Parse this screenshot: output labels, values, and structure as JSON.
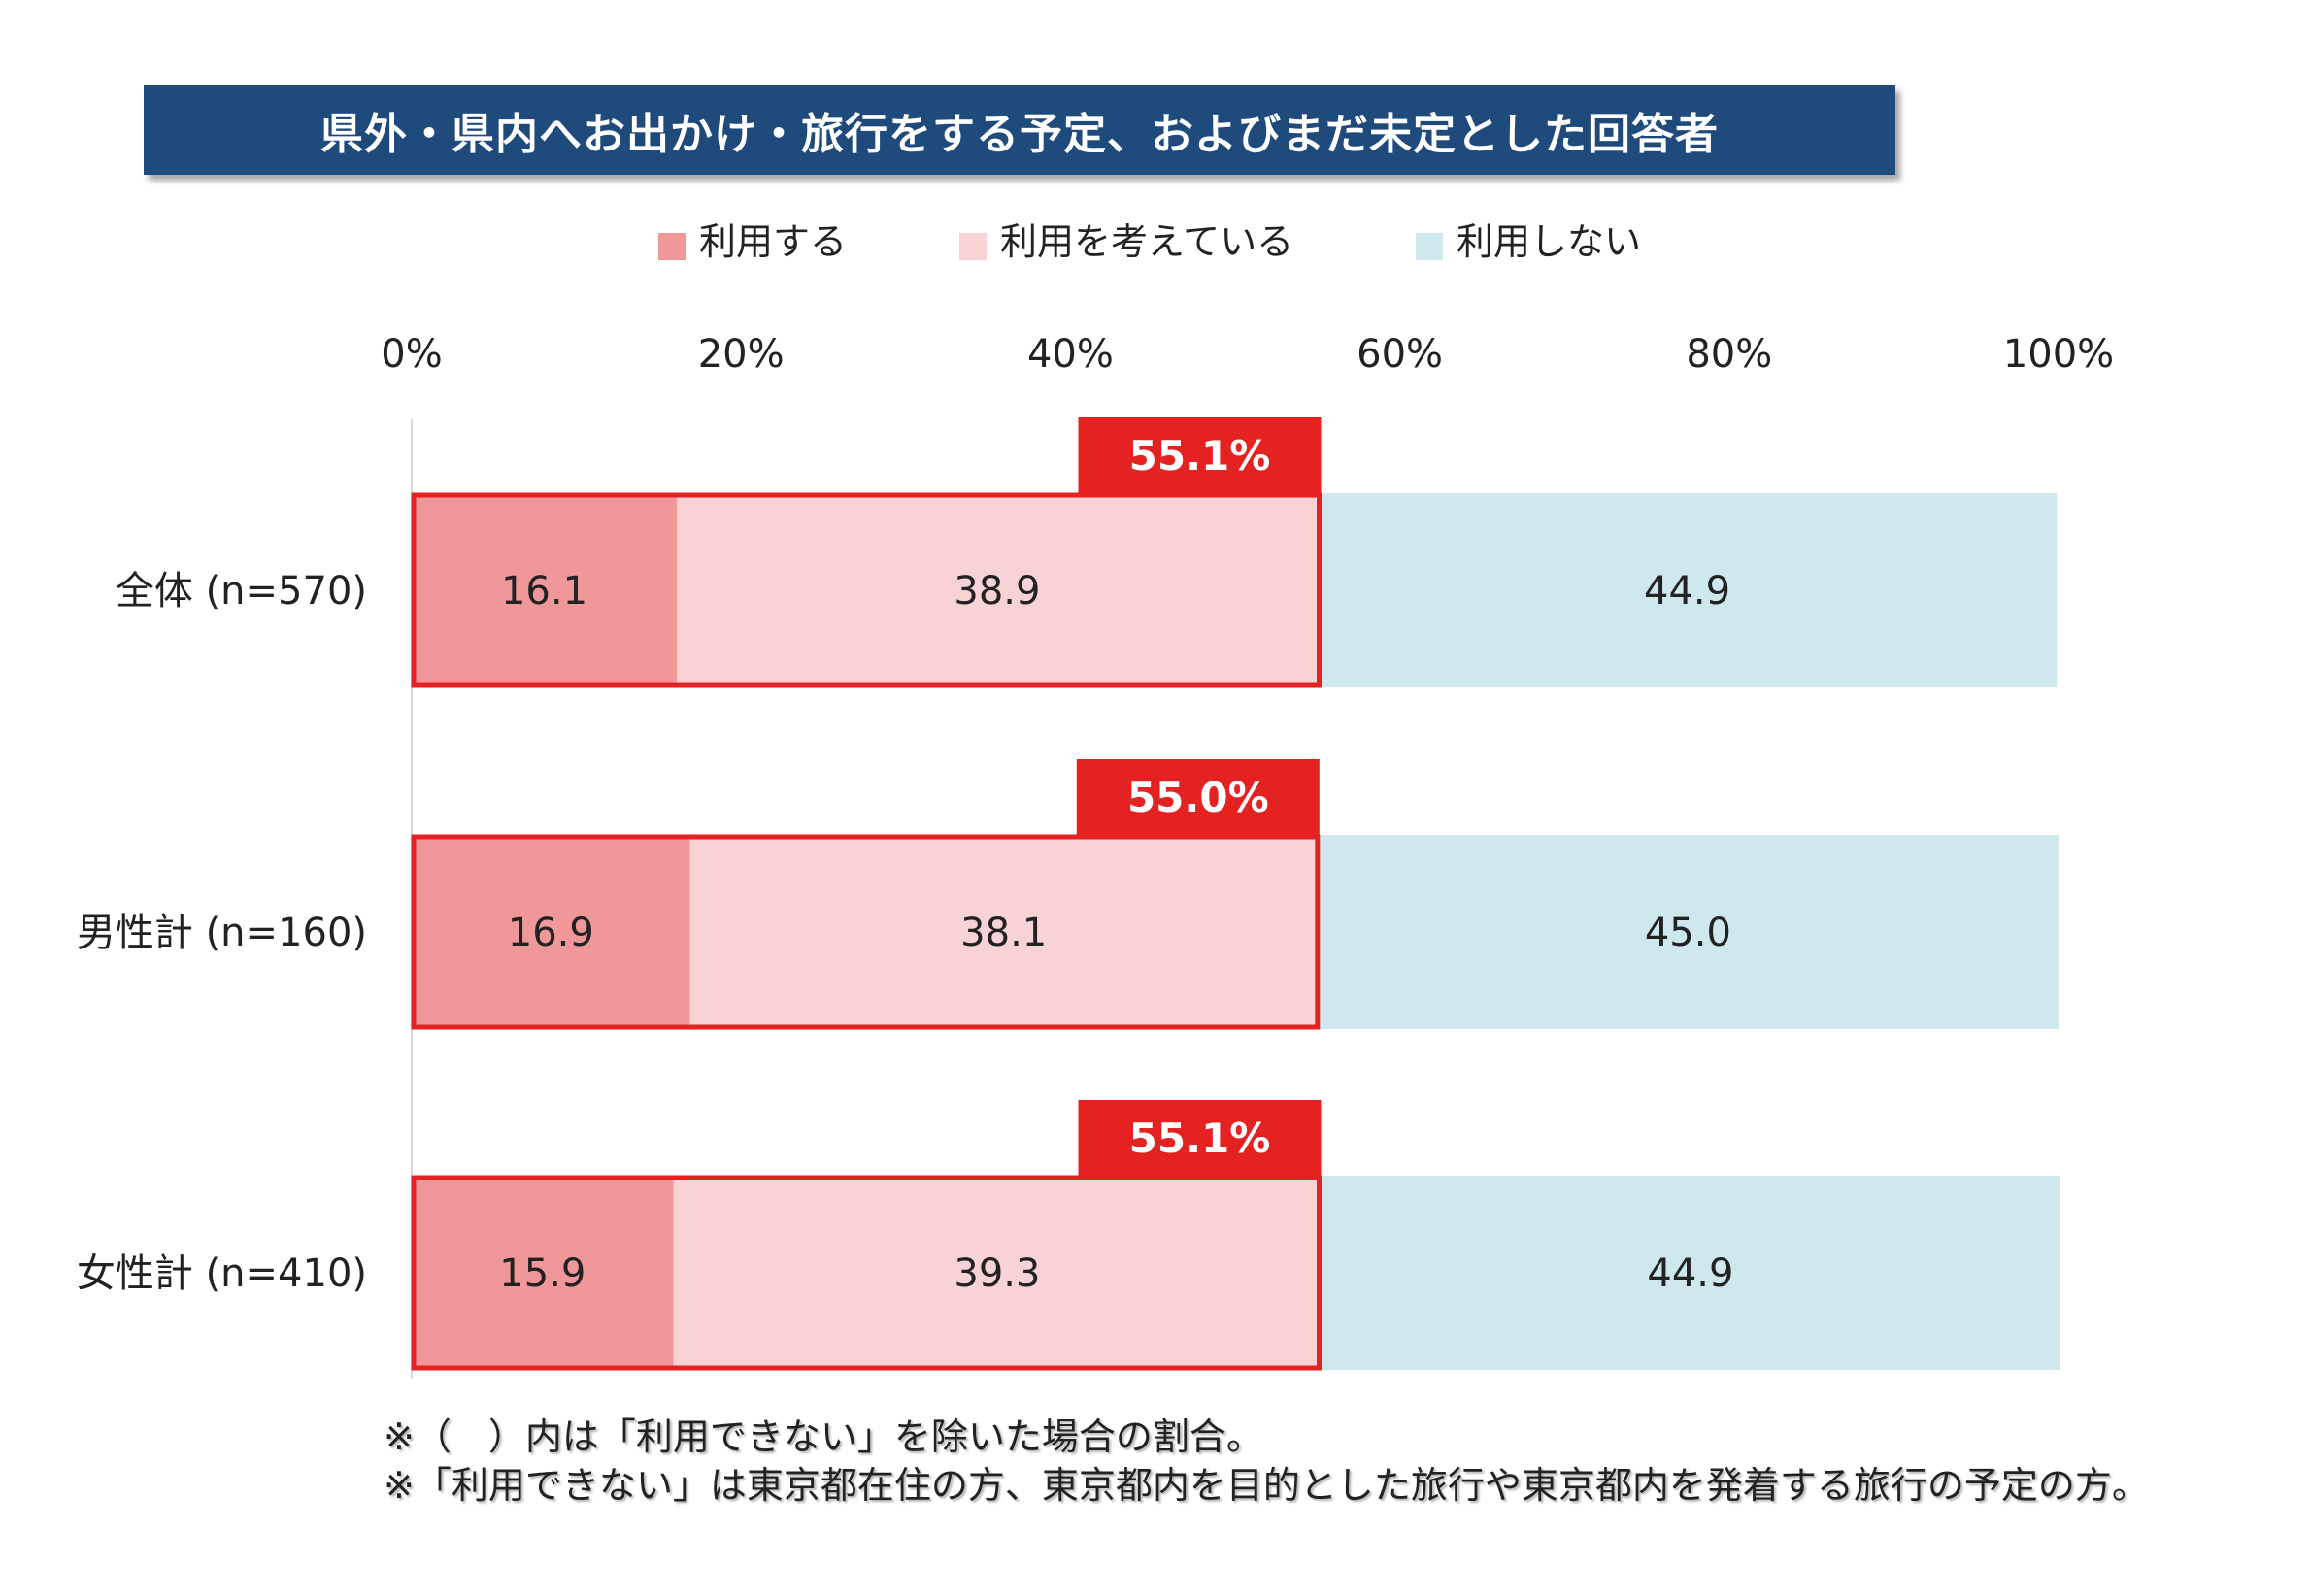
{
  "title": "県外・県内へお出かけ・旅行をする予定、およびまだ未定とした回答者",
  "chart_data": {
    "type": "bar",
    "orientation": "horizontal",
    "stacked": true,
    "categories": [
      "全体 (n=570)",
      "男性計 (n=160)",
      "女性計 (n=410)"
    ],
    "series": [
      {
        "name": "利用する",
        "color": "#f09799",
        "values": [
          16.1,
          16.9,
          15.9
        ]
      },
      {
        "name": "利用を考えている",
        "color": "#f8d3d5",
        "values": [
          38.9,
          38.1,
          39.3
        ]
      },
      {
        "name": "利用しない",
        "color": "#cee8ed",
        "values": [
          44.9,
          45.0,
          44.9
        ]
      }
    ],
    "value_labels": [
      [
        "16.1",
        "38.9",
        "44.9"
      ],
      [
        "16.9",
        "38.1",
        "45.0"
      ],
      [
        "15.9",
        "39.3",
        "44.9"
      ]
    ],
    "callouts": [
      "55.1%",
      "55.0%",
      "55.1%"
    ],
    "callout_values": [
      55.1,
      55.0,
      55.1
    ],
    "callout_color": "#e52222",
    "xlim": [
      0,
      100
    ],
    "xticks": [
      "0%",
      "20%",
      "40%",
      "60%",
      "80%",
      "100%"
    ],
    "legend_position": "top",
    "grid": false
  },
  "notes": [
    "※（　）内は「利用できない」を除いた場合の割合。",
    "※「利用できない」は東京都在住の方、東京都内を目的とした旅行や東京都内を発着する旅行の予定の方。"
  ]
}
